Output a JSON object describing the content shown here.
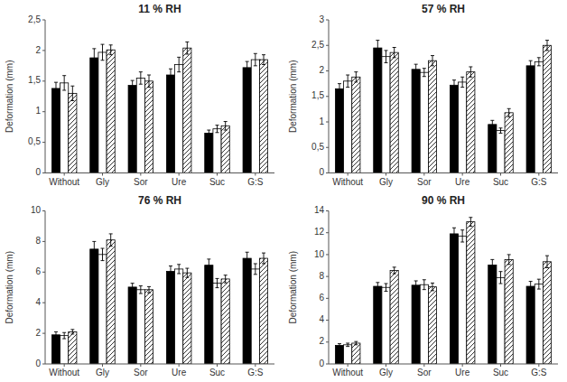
{
  "chart_data": [
    {
      "type": "bar",
      "title": "11 % RH",
      "ylabel": "Deformation (mm)",
      "categories": [
        "Without",
        "Gly",
        "Sor",
        "Ure",
        "Suc",
        "G:S"
      ],
      "series": [
        {
          "color": "#000000",
          "values": [
            1.38,
            1.88,
            1.43,
            1.6,
            0.65,
            1.72
          ],
          "errors": [
            0.1,
            0.15,
            0.08,
            0.1,
            0.05,
            0.1
          ]
        },
        {
          "color": "#ffffff",
          "values": [
            1.47,
            1.97,
            1.55,
            1.77,
            0.72,
            1.85
          ],
          "errors": [
            0.12,
            0.13,
            0.1,
            0.12,
            0.06,
            0.1
          ]
        },
        {
          "color": "#ffffff",
          "values": [
            1.3,
            2.01,
            1.5,
            2.04,
            0.77,
            1.85
          ],
          "errors": [
            0.12,
            0.08,
            0.1,
            0.1,
            0.07,
            0.08
          ]
        }
      ],
      "ylim": [
        0,
        2.5
      ],
      "yticks": [
        0,
        {
          "value": 0.5,
          "label": "0,5"
        },
        1,
        {
          "value": 1.5,
          "label": "1,5"
        },
        2,
        {
          "value": 2.5,
          "label": "2,5"
        }
      ],
      "grid": false
    },
    {
      "type": "bar",
      "title": "57 % RH",
      "ylabel": "Deformation (mm)",
      "categories": [
        "Without",
        "Gly",
        "Sor",
        "Ure",
        "Suc",
        "G:S"
      ],
      "series": [
        {
          "color": "#000000",
          "values": [
            1.65,
            2.45,
            2.03,
            1.72,
            0.95,
            2.1
          ],
          "errors": [
            0.1,
            0.15,
            0.1,
            0.1,
            0.08,
            0.1
          ]
        },
        {
          "color": "#ffffff",
          "values": [
            1.8,
            2.28,
            1.97,
            1.78,
            0.83,
            2.18
          ],
          "errors": [
            0.12,
            0.12,
            0.08,
            0.1,
            0.05,
            0.08
          ]
        },
        {
          "color": "#ffffff",
          "values": [
            1.88,
            2.36,
            2.2,
            1.98,
            1.18,
            2.5
          ],
          "errors": [
            0.1,
            0.1,
            0.1,
            0.1,
            0.08,
            0.1
          ]
        }
      ],
      "ylim": [
        0,
        3.0
      ],
      "yticks": [
        0,
        {
          "value": 0.5,
          "label": "0,5"
        },
        1,
        {
          "value": 1.5,
          "label": "1,5"
        },
        2,
        {
          "value": 2.5,
          "label": "2,5"
        },
        3
      ],
      "grid": false
    },
    {
      "type": "bar",
      "title": "76 % RH",
      "ylabel": "Deformation (mm)",
      "categories": [
        "Without",
        "Gly",
        "Sor",
        "Ure",
        "Suc",
        "G:S"
      ],
      "series": [
        {
          "color": "#000000",
          "values": [
            1.9,
            7.5,
            5.02,
            6.05,
            6.45,
            6.9
          ],
          "errors": [
            0.2,
            0.5,
            0.25,
            0.35,
            0.4,
            0.4
          ]
        },
        {
          "color": "#ffffff",
          "values": [
            1.85,
            7.15,
            4.85,
            6.2,
            5.28,
            6.2
          ],
          "errors": [
            0.2,
            0.4,
            0.25,
            0.3,
            0.3,
            0.35
          ]
        },
        {
          "color": "#ffffff",
          "values": [
            2.1,
            8.1,
            4.85,
            5.95,
            5.55,
            6.9
          ],
          "errors": [
            0.15,
            0.4,
            0.2,
            0.3,
            0.25,
            0.35
          ]
        }
      ],
      "ylim": [
        0,
        10
      ],
      "yticks": [
        0,
        2,
        4,
        6,
        8,
        10
      ],
      "grid": false
    },
    {
      "type": "bar",
      "title": "90 % RH",
      "ylabel": "Deformation (mm)",
      "categories": [
        "Without",
        "Gly",
        "Sor",
        "Ure",
        "Suc",
        "G:S"
      ],
      "series": [
        {
          "color": "#000000",
          "values": [
            1.7,
            7.1,
            7.2,
            11.9,
            9.05,
            7.1
          ],
          "errors": [
            0.15,
            0.35,
            0.4,
            0.55,
            0.5,
            0.45
          ]
        },
        {
          "color": "#ffffff",
          "values": [
            1.75,
            7.0,
            7.25,
            11.7,
            7.9,
            7.3
          ],
          "errors": [
            0.15,
            0.35,
            0.45,
            0.55,
            0.55,
            0.45
          ]
        },
        {
          "color": "#ffffff",
          "values": [
            1.9,
            8.55,
            7.05,
            13.0,
            9.55,
            9.35
          ],
          "errors": [
            0.15,
            0.3,
            0.35,
            0.4,
            0.45,
            0.55
          ]
        }
      ],
      "ylim": [
        0,
        14
      ],
      "yticks": [
        0,
        2,
        4,
        6,
        8,
        10,
        12,
        14
      ],
      "grid": false
    }
  ]
}
